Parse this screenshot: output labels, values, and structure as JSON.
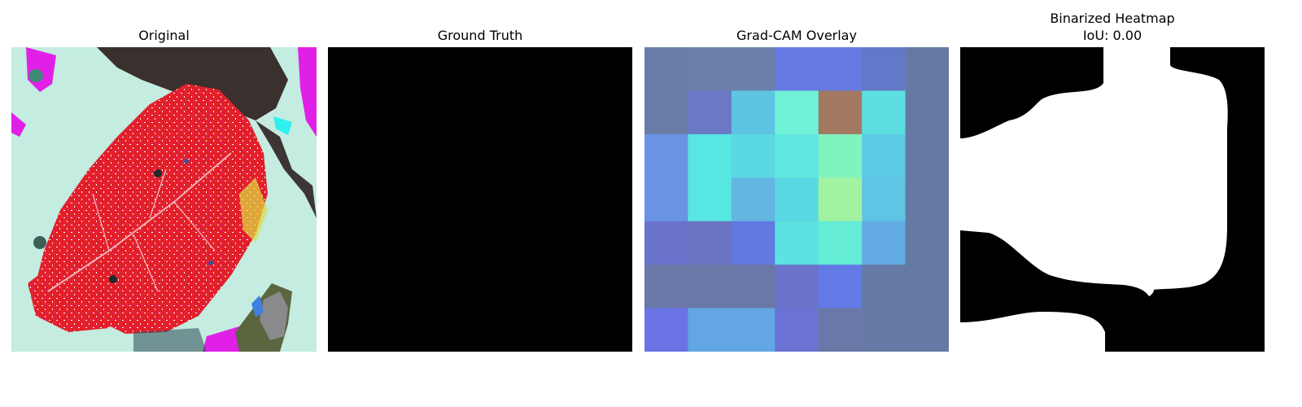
{
  "panels": [
    {
      "title": "Original",
      "subtitle": ""
    },
    {
      "title": "Ground Truth",
      "subtitle": ""
    },
    {
      "title": "Grad-CAM Overlay",
      "subtitle": ""
    },
    {
      "title": "Binarized Heatmap",
      "subtitle": "IoU: 0.00"
    }
  ],
  "heatmap": {
    "grid_size": 7,
    "cell_colors": [
      [
        "#6a7da8",
        "#6a80aa",
        "#6a80ab",
        "#6779e3",
        "#6779e3",
        "#6279c9",
        "#647aa4"
      ],
      [
        "#6a7da8",
        "#6a78c5",
        "#5fc4e1",
        "#70f2d6",
        "#a37963",
        "#5ddee0",
        "#647aa4"
      ],
      [
        "#6a93e6",
        "#58e6e3",
        "#5ad8e3",
        "#60e6e0",
        "#80f3c1",
        "#5ccbe4",
        "#647aa4"
      ],
      [
        "#6a93e6",
        "#58e6e3",
        "#64b6e3",
        "#5ad8e3",
        "#a1f3a1",
        "#5ec5e4",
        "#647aa4"
      ],
      [
        "#6a73cc",
        "#6a73c0",
        "#6279e3",
        "#5ce2e3",
        "#64ecd6",
        "#62ace3",
        "#647aa4"
      ],
      [
        "#6a78a8",
        "#6a78a8",
        "#6a78a8",
        "#6a73c9",
        "#6279e6",
        "#647aa4",
        "#647aa4"
      ],
      [
        "#6a73e6",
        "#62a6e3",
        "#62a6e3",
        "#6a73d4",
        "#6a78a8",
        "#647aa4",
        "#647aa4"
      ]
    ]
  },
  "colors": {
    "ground_truth": "#000000",
    "mask_background": "#000000",
    "mask_foreground": "#ffffff",
    "leaf_red": "#e3202a",
    "magenta": "#e020e6",
    "background_mint": "#c4ece0"
  }
}
